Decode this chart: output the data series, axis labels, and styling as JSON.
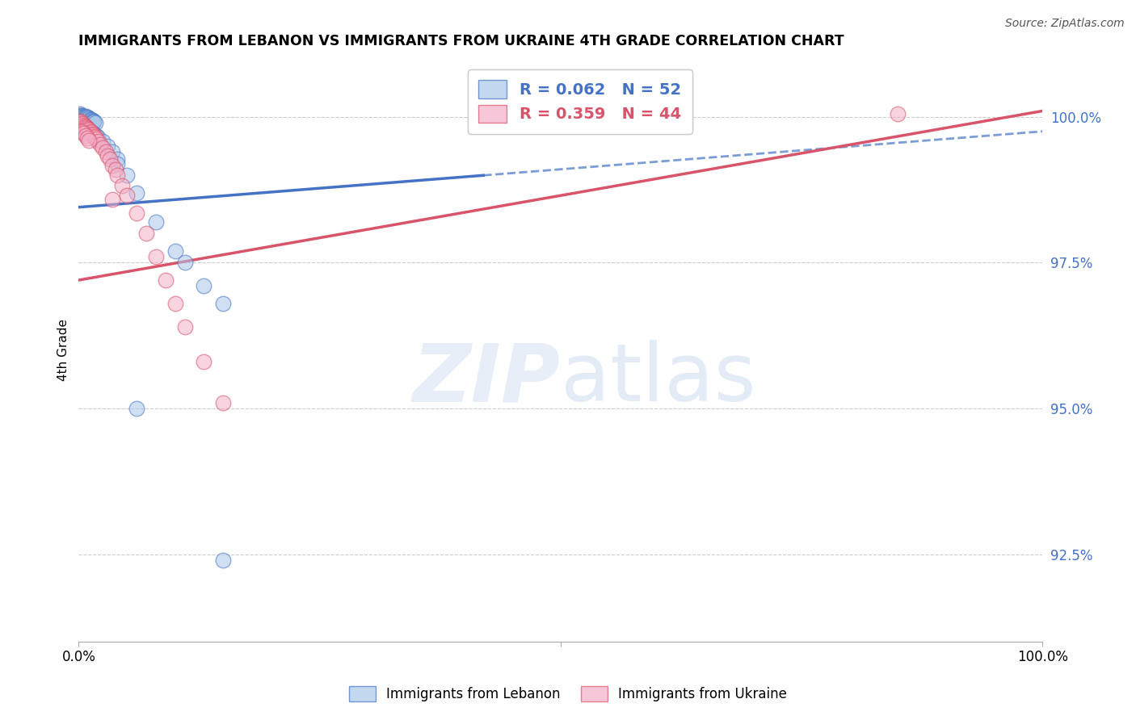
{
  "title": "IMMIGRANTS FROM LEBANON VS IMMIGRANTS FROM UKRAINE 4TH GRADE CORRELATION CHART",
  "source": "Source: ZipAtlas.com",
  "ylabel": "4th Grade",
  "ytick_labels": [
    "92.5%",
    "95.0%",
    "97.5%",
    "100.0%"
  ],
  "ytick_values": [
    0.925,
    0.95,
    0.975,
    1.0
  ],
  "xlim": [
    0.0,
    1.0
  ],
  "ylim": [
    0.91,
    1.01
  ],
  "blue_color": "#aac8e8",
  "pink_color": "#f4afc8",
  "blue_line_color": "#4472c4",
  "pink_line_color": "#d9536a",
  "legend_entries": [
    {
      "label": "R = 0.062   N = 52",
      "color": "#4472c4"
    },
    {
      "label": "R = 0.359   N = 44",
      "color": "#d9536a"
    }
  ],
  "legend_bottom": [
    {
      "label": "Immigrants from Lebanon",
      "color": "#aac8e8"
    },
    {
      "label": "Immigrants from Ukraine",
      "color": "#f4afc8"
    }
  ],
  "leb_line_start_x": 0.0,
  "leb_line_solid_end_x": 0.42,
  "leb_line_end_x": 1.0,
  "leb_line_start_y": 0.9845,
  "leb_line_end_y": 0.9975,
  "ukr_line_start_x": 0.0,
  "ukr_line_end_x": 1.0,
  "ukr_line_start_y": 0.972,
  "ukr_line_end_y": 1.001,
  "lebanon_x": [
    0.001,
    0.002,
    0.003,
    0.003,
    0.004,
    0.005,
    0.006,
    0.007,
    0.008,
    0.009,
    0.01,
    0.011,
    0.012,
    0.013,
    0.014,
    0.015,
    0.016,
    0.016,
    0.017,
    0.003,
    0.004,
    0.005,
    0.007,
    0.008,
    0.009,
    0.01,
    0.012,
    0.014,
    0.016,
    0.018,
    0.02,
    0.025,
    0.03,
    0.035,
    0.04,
    0.05,
    0.06,
    0.08,
    0.1,
    0.11,
    0.13,
    0.15,
    0.003,
    0.004,
    0.006,
    0.007,
    0.009,
    0.01,
    0.015,
    0.04,
    0.06,
    0.15
  ],
  "lebanon_y": [
    1.0005,
    1.0003,
    1.0002,
    1.0001,
    1.0,
    0.9999,
    0.9998,
    1.0001,
    1.0,
    0.9999,
    0.9998,
    0.9997,
    0.9996,
    0.9995,
    0.9994,
    0.9993,
    0.9992,
    0.9991,
    0.999,
    0.9988,
    0.9987,
    0.9985,
    0.9983,
    0.9981,
    0.9979,
    0.9977,
    0.9975,
    0.9973,
    0.997,
    0.9968,
    0.9965,
    0.9958,
    0.995,
    0.994,
    0.9928,
    0.99,
    0.987,
    0.982,
    0.977,
    0.975,
    0.971,
    0.968,
    0.9985,
    0.9983,
    0.9981,
    0.9979,
    0.9977,
    0.9975,
    0.9968,
    0.992,
    0.95,
    0.924
  ],
  "ukraine_x": [
    0.001,
    0.002,
    0.003,
    0.004,
    0.005,
    0.006,
    0.007,
    0.008,
    0.009,
    0.01,
    0.011,
    0.012,
    0.013,
    0.014,
    0.015,
    0.016,
    0.017,
    0.018,
    0.02,
    0.022,
    0.025,
    0.028,
    0.03,
    0.032,
    0.035,
    0.038,
    0.04,
    0.045,
    0.05,
    0.06,
    0.07,
    0.08,
    0.09,
    0.1,
    0.11,
    0.13,
    0.15,
    0.003,
    0.005,
    0.007,
    0.009,
    0.011,
    0.035,
    0.85
  ],
  "ukraine_y": [
    0.9993,
    0.9991,
    0.9989,
    0.9988,
    0.9986,
    0.9985,
    0.9983,
    0.9982,
    0.998,
    0.9979,
    0.9977,
    0.9975,
    0.9973,
    0.9971,
    0.9969,
    0.9967,
    0.9965,
    0.9962,
    0.9958,
    0.9953,
    0.9947,
    0.994,
    0.9933,
    0.9927,
    0.9917,
    0.991,
    0.99,
    0.9882,
    0.9865,
    0.9835,
    0.98,
    0.976,
    0.972,
    0.968,
    0.964,
    0.958,
    0.951,
    0.9975,
    0.9972,
    0.9968,
    0.9964,
    0.996,
    0.9858,
    1.0005
  ]
}
